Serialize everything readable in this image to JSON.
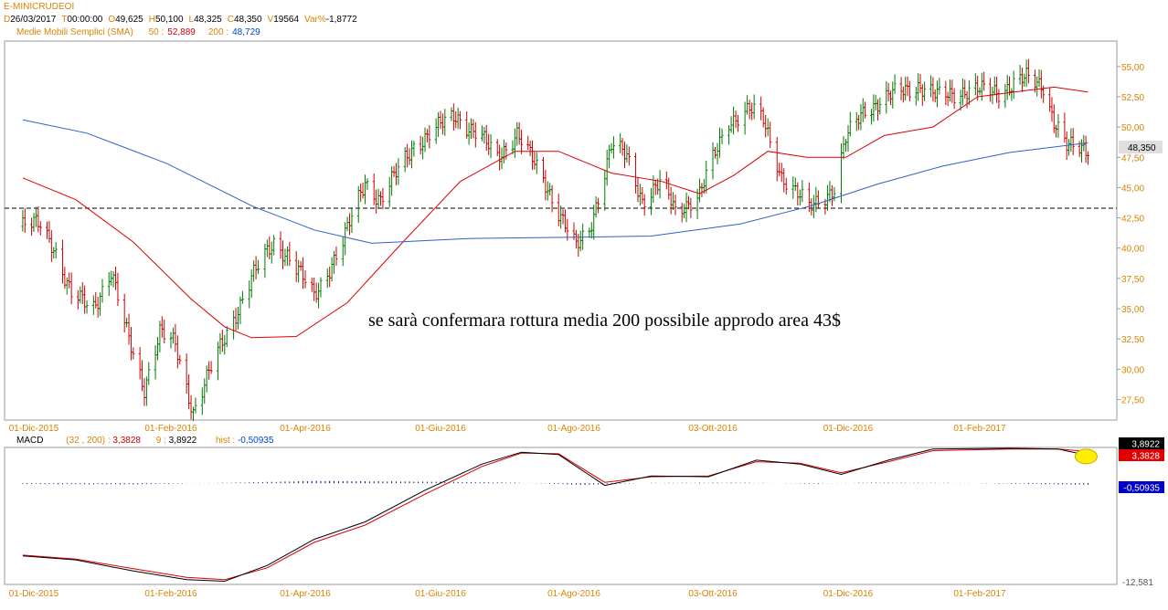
{
  "header": {
    "symbol": "E-MINICRUDEOI",
    "quote": [
      {
        "label": "D",
        "value": "26/03/2017"
      },
      {
        "label": "T",
        "value": "00:00:00"
      },
      {
        "label": "O",
        "value": "49,625"
      },
      {
        "label": "H",
        "value": "50,100"
      },
      {
        "label": "L",
        "value": "48,325"
      },
      {
        "label": "C",
        "value": "48,350"
      },
      {
        "label": "V",
        "value": "19564"
      },
      {
        "label": "Var%",
        "value": "-1,8772"
      }
    ],
    "sma_title": "Medie Mobili Semplici (SMA)",
    "sma": [
      {
        "label": "50 :",
        "value": "52,889",
        "color": "#cc0000"
      },
      {
        "label": "200 :",
        "value": "48,729",
        "color": "#0044cc"
      }
    ]
  },
  "macd_header": {
    "title": "MACD",
    "params": "(32 , 200) :",
    "macd_value": "3,3828",
    "signal_label": "9 :",
    "signal_value": "3,8922",
    "hist_label": "hist :",
    "hist_value": "-0,50935"
  },
  "annotation": "se sarà confermara rottura media 200 possibile approdo area 43$",
  "colors": {
    "candle_up": "#007a00",
    "candle_down": "#cc0000",
    "sma50": "#dd0000",
    "sma200": "#2a62c9",
    "macd": "#000000",
    "signal": "#dd0000",
    "hist": "#00007a",
    "axis_text": "#d88400",
    "highlight": "#ffee00"
  },
  "chart_data": [
    {
      "type": "candlestick",
      "title": "E-MINICRUDEOI",
      "x_ticks": [
        "01-Dic-2015",
        "01-Feb-2016",
        "01-Apr-2016",
        "01-Giu-2016",
        "01-Ago-2016",
        "03-Ott-2016",
        "01-Dic-2016",
        "01-Feb-2017"
      ],
      "y_ticks": [
        "55,00",
        "52,50",
        "50,00",
        "47,50",
        "45,00",
        "42,50",
        "40,00",
        "37,50",
        "35,00",
        "32,50",
        "30,00",
        "27,50"
      ],
      "ylim": [
        25.8,
        57.1
      ],
      "last_price_label": "48,350",
      "reference_level": 43.3,
      "close_path": [
        {
          "date": "2015-11-26",
          "value": 41.8
        },
        {
          "date": "2015-12-04",
          "value": 42.0
        },
        {
          "date": "2015-12-10",
          "value": 40.2
        },
        {
          "date": "2015-12-18",
          "value": 36.0
        },
        {
          "date": "2015-12-28",
          "value": 35.2
        },
        {
          "date": "2016-01-05",
          "value": 38.0
        },
        {
          "date": "2016-01-12",
          "value": 33.0
        },
        {
          "date": "2016-01-20",
          "value": 28.5
        },
        {
          "date": "2016-01-27",
          "value": 33.0
        },
        {
          "date": "2016-02-03",
          "value": 32.0
        },
        {
          "date": "2016-02-11",
          "value": 26.5
        },
        {
          "date": "2016-02-20",
          "value": 30.5
        },
        {
          "date": "2016-02-26",
          "value": 33.0
        },
        {
          "date": "2016-03-08",
          "value": 37.5
        },
        {
          "date": "2016-03-18",
          "value": 40.5
        },
        {
          "date": "2016-03-24",
          "value": 39.5
        },
        {
          "date": "2016-04-05",
          "value": 36.0
        },
        {
          "date": "2016-04-18",
          "value": 40.5
        },
        {
          "date": "2016-04-28",
          "value": 45.5
        },
        {
          "date": "2016-05-05",
          "value": 44.0
        },
        {
          "date": "2016-05-20",
          "value": 48.5
        },
        {
          "date": "2016-06-08",
          "value": 51.0
        },
        {
          "date": "2016-06-20",
          "value": 49.0
        },
        {
          "date": "2016-06-27",
          "value": 47.5
        },
        {
          "date": "2016-07-06",
          "value": 49.5
        },
        {
          "date": "2016-07-20",
          "value": 45.0
        },
        {
          "date": "2016-08-02",
          "value": 40.0
        },
        {
          "date": "2016-08-08",
          "value": 41.5
        },
        {
          "date": "2016-08-18",
          "value": 48.5
        },
        {
          "date": "2016-08-25",
          "value": 47.5
        },
        {
          "date": "2016-09-01",
          "value": 44.0
        },
        {
          "date": "2016-09-10",
          "value": 45.5
        },
        {
          "date": "2016-09-16",
          "value": 43.0
        },
        {
          "date": "2016-09-27",
          "value": 44.5
        },
        {
          "date": "2016-10-10",
          "value": 50.5
        },
        {
          "date": "2016-10-19",
          "value": 51.5
        },
        {
          "date": "2016-10-25",
          "value": 50.5
        },
        {
          "date": "2016-11-02",
          "value": 46.0
        },
        {
          "date": "2016-11-14",
          "value": 43.3
        },
        {
          "date": "2016-11-25",
          "value": 45.0
        },
        {
          "date": "2016-11-30",
          "value": 49.0
        },
        {
          "date": "2016-12-09",
          "value": 51.5
        },
        {
          "date": "2016-12-20",
          "value": 52.5
        },
        {
          "date": "2017-01-03",
          "value": 53.5
        },
        {
          "date": "2017-01-12",
          "value": 52.5
        },
        {
          "date": "2017-01-24",
          "value": 53.0
        },
        {
          "date": "2017-02-10",
          "value": 53.0
        },
        {
          "date": "2017-02-23",
          "value": 54.0
        },
        {
          "date": "2017-03-03",
          "value": 53.5
        },
        {
          "date": "2017-03-08",
          "value": 50.5
        },
        {
          "date": "2017-03-14",
          "value": 48.3
        },
        {
          "date": "2017-03-24",
          "value": 48.35
        }
      ],
      "series": [
        {
          "name": "50",
          "values": [
            {
              "date": "2015-11-26",
              "value": 45.8
            },
            {
              "date": "2015-12-20",
              "value": 44.0
            },
            {
              "date": "2016-01-15",
              "value": 40.5
            },
            {
              "date": "2016-02-10",
              "value": 35.8
            },
            {
              "date": "2016-02-25",
              "value": 33.5
            },
            {
              "date": "2016-03-08",
              "value": 32.6
            },
            {
              "date": "2016-03-28",
              "value": 32.7
            },
            {
              "date": "2016-04-20",
              "value": 35.5
            },
            {
              "date": "2016-05-15",
              "value": 40.5
            },
            {
              "date": "2016-06-10",
              "value": 45.5
            },
            {
              "date": "2016-07-05",
              "value": 48.0
            },
            {
              "date": "2016-07-25",
              "value": 48.0
            },
            {
              "date": "2016-08-18",
              "value": 46.2
            },
            {
              "date": "2016-09-10",
              "value": 45.5
            },
            {
              "date": "2016-09-27",
              "value": 44.5
            },
            {
              "date": "2016-10-12",
              "value": 46.0
            },
            {
              "date": "2016-10-27",
              "value": 48.0
            },
            {
              "date": "2016-11-13",
              "value": 47.5
            },
            {
              "date": "2016-11-30",
              "value": 47.5
            },
            {
              "date": "2016-12-18",
              "value": 49.3
            },
            {
              "date": "2017-01-10",
              "value": 50.0
            },
            {
              "date": "2017-01-31",
              "value": 52.5
            },
            {
              "date": "2017-02-22",
              "value": 53.0
            },
            {
              "date": "2017-03-08",
              "value": 53.3
            },
            {
              "date": "2017-03-24",
              "value": 52.9
            }
          ]
        },
        {
          "name": "200",
          "values": [
            {
              "date": "2015-11-26",
              "value": 50.6
            },
            {
              "date": "2015-12-25",
              "value": 49.5
            },
            {
              "date": "2016-01-30",
              "value": 47.0
            },
            {
              "date": "2016-03-08",
              "value": 43.5
            },
            {
              "date": "2016-04-05",
              "value": 41.5
            },
            {
              "date": "2016-05-01",
              "value": 40.4
            },
            {
              "date": "2016-06-15",
              "value": 40.8
            },
            {
              "date": "2016-08-01",
              "value": 40.9
            },
            {
              "date": "2016-09-05",
              "value": 41.0
            },
            {
              "date": "2016-10-15",
              "value": 42.0
            },
            {
              "date": "2016-11-15",
              "value": 43.5
            },
            {
              "date": "2016-12-15",
              "value": 45.3
            },
            {
              "date": "2017-01-15",
              "value": 46.8
            },
            {
              "date": "2017-02-15",
              "value": 47.9
            },
            {
              "date": "2017-03-24",
              "value": 48.7
            }
          ]
        }
      ]
    },
    {
      "type": "line",
      "title": "MACD",
      "x_ticks": [
        "01-Dic-2015",
        "01-Feb-2016",
        "01-Apr-2016",
        "01-Giu-2016",
        "01-Ago-2016",
        "03-Ott-2016",
        "01-Dic-2016",
        "01-Feb-2017"
      ],
      "y_ticks": [
        "3,8922",
        "3,3828",
        "-0,50935",
        "-12,581"
      ],
      "ylim": [
        -12.9,
        4.4
      ],
      "series": [
        {
          "name": "MACD",
          "values": [
            {
              "date": "2015-11-26",
              "value": -9.3
            },
            {
              "date": "2015-12-20",
              "value": -9.8
            },
            {
              "date": "2016-01-15",
              "value": -11.2
            },
            {
              "date": "2016-02-08",
              "value": -12.3
            },
            {
              "date": "2016-02-25",
              "value": -12.5
            },
            {
              "date": "2016-03-15",
              "value": -10.5
            },
            {
              "date": "2016-04-05",
              "value": -7.2
            },
            {
              "date": "2016-04-28",
              "value": -5.0
            },
            {
              "date": "2016-05-25",
              "value": -1.0
            },
            {
              "date": "2016-06-20",
              "value": 2.3
            },
            {
              "date": "2016-07-08",
              "value": 3.8
            },
            {
              "date": "2016-07-25",
              "value": 3.5
            },
            {
              "date": "2016-08-15",
              "value": -0.4
            },
            {
              "date": "2016-09-05",
              "value": 0.8
            },
            {
              "date": "2016-10-01",
              "value": 0.7
            },
            {
              "date": "2016-10-22",
              "value": 2.8
            },
            {
              "date": "2016-11-10",
              "value": 2.3
            },
            {
              "date": "2016-11-28",
              "value": 1.0
            },
            {
              "date": "2016-12-20",
              "value": 2.8
            },
            {
              "date": "2017-01-10",
              "value": 4.2
            },
            {
              "date": "2017-02-15",
              "value": 4.3
            },
            {
              "date": "2017-03-10",
              "value": 4.2
            },
            {
              "date": "2017-03-24",
              "value": 3.38
            }
          ]
        },
        {
          "name": "9",
          "values": [
            {
              "date": "2015-11-26",
              "value": -9.2
            },
            {
              "date": "2015-12-20",
              "value": -9.7
            },
            {
              "date": "2016-01-15",
              "value": -10.9
            },
            {
              "date": "2016-02-08",
              "value": -12.0
            },
            {
              "date": "2016-02-25",
              "value": -12.3
            },
            {
              "date": "2016-03-15",
              "value": -10.8
            },
            {
              "date": "2016-04-05",
              "value": -7.6
            },
            {
              "date": "2016-04-28",
              "value": -5.4
            },
            {
              "date": "2016-05-25",
              "value": -1.5
            },
            {
              "date": "2016-06-20",
              "value": 2.0
            },
            {
              "date": "2016-07-08",
              "value": 3.7
            },
            {
              "date": "2016-07-25",
              "value": 3.6
            },
            {
              "date": "2016-08-15",
              "value": 0.0
            },
            {
              "date": "2016-09-05",
              "value": 0.7
            },
            {
              "date": "2016-10-01",
              "value": 0.8
            },
            {
              "date": "2016-10-22",
              "value": 2.6
            },
            {
              "date": "2016-11-10",
              "value": 2.4
            },
            {
              "date": "2016-11-28",
              "value": 1.2
            },
            {
              "date": "2016-12-20",
              "value": 2.6
            },
            {
              "date": "2017-01-10",
              "value": 4.0
            },
            {
              "date": "2017-02-15",
              "value": 4.2
            },
            {
              "date": "2017-03-10",
              "value": 4.2
            },
            {
              "date": "2017-03-24",
              "value": 3.89
            }
          ]
        },
        {
          "name": "hist",
          "values": [
            {
              "date": "2015-11-26",
              "value": -0.3
            },
            {
              "date": "2016-01-15",
              "value": -0.4
            },
            {
              "date": "2016-03-08",
              "value": 0.3
            },
            {
              "date": "2016-04-05",
              "value": 0.8
            },
            {
              "date": "2016-04-25",
              "value": 0.7
            },
            {
              "date": "2016-06-01",
              "value": 0.5
            },
            {
              "date": "2016-07-05",
              "value": 0.2
            },
            {
              "date": "2016-08-05",
              "value": -0.6
            },
            {
              "date": "2016-09-05",
              "value": 0.1
            },
            {
              "date": "2016-10-15",
              "value": 0.2
            },
            {
              "date": "2016-11-15",
              "value": -0.2
            },
            {
              "date": "2016-12-10",
              "value": 0.2
            },
            {
              "date": "2017-01-15",
              "value": 0.1
            },
            {
              "date": "2017-03-24",
              "value": -0.51
            }
          ]
        }
      ]
    }
  ]
}
